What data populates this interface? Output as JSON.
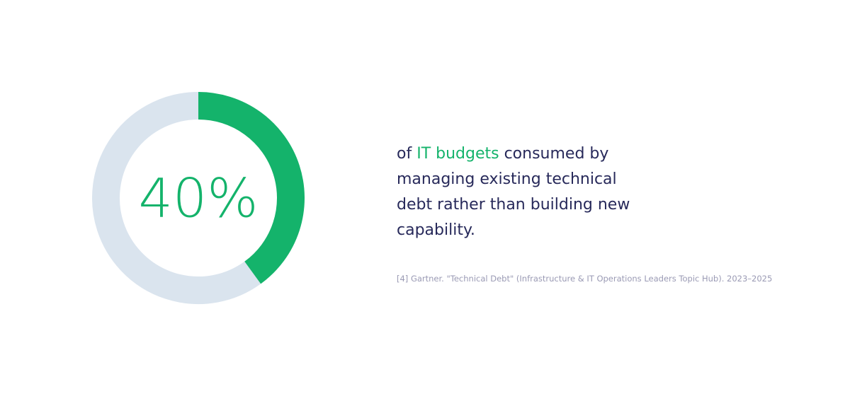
{
  "chart_data": {
    "type": "donut",
    "values": [
      40,
      60
    ],
    "value_labels": [
      "40%",
      null
    ],
    "colors": [
      "#14b36b",
      "#dae4ee"
    ],
    "caption": [
      "of ",
      "IT budgets",
      " consumed by managing existing technical debt rather than building new capability."
    ],
    "source": "[4] Gartner. \"Technical Debt\" (Infrastructure & IT Operations Leaders Topic Hub). 2023–2025"
  }
}
